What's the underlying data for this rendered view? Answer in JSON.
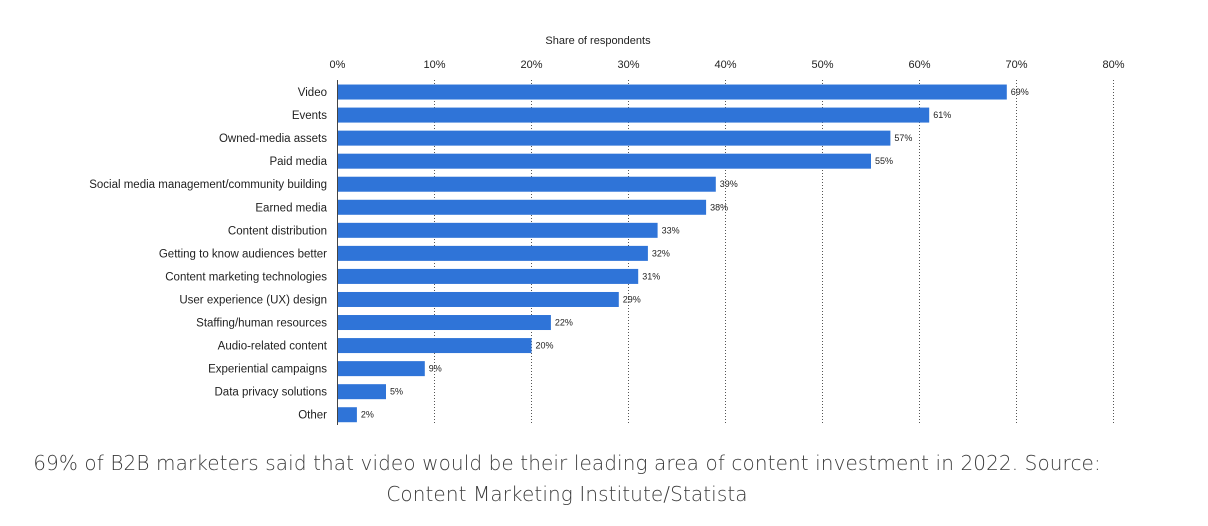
{
  "chart_data": {
    "type": "bar",
    "orientation": "horizontal",
    "title": "",
    "xlabel": "Share of respondents",
    "ylabel": "",
    "xlim": [
      0,
      80
    ],
    "tick_values": [
      0,
      10,
      20,
      30,
      40,
      50,
      60,
      70,
      80
    ],
    "tick_labels": [
      "0%",
      "10%",
      "20%",
      "30%",
      "40%",
      "50%",
      "60%",
      "70%",
      "80%"
    ],
    "grid": "vertical dotted",
    "bar_color": "#2f74d8",
    "categories": [
      "Video",
      "Events",
      "Owned-media assets",
      "Paid media",
      "Social media management/community building",
      "Earned media",
      "Content distribution",
      "Getting to know audiences better",
      "Content marketing technologies",
      "User experience (UX) design",
      "Staffing/human resources",
      "Audio-related content",
      "Experiential campaigns",
      "Data privacy solutions",
      "Other"
    ],
    "values": [
      69,
      61,
      57,
      55,
      39,
      38,
      33,
      32,
      31,
      29,
      22,
      20,
      9,
      5,
      2
    ],
    "value_labels": [
      "69%",
      "61%",
      "57%",
      "55%",
      "39%",
      "38%",
      "33%",
      "32%",
      "31%",
      "29%",
      "22%",
      "20%",
      "9%",
      "5%",
      "2%"
    ]
  },
  "caption": "69% of B2B marketers said that video would be their leading area of content investment in 2022. Source: Content Marketing Institute/Statista"
}
